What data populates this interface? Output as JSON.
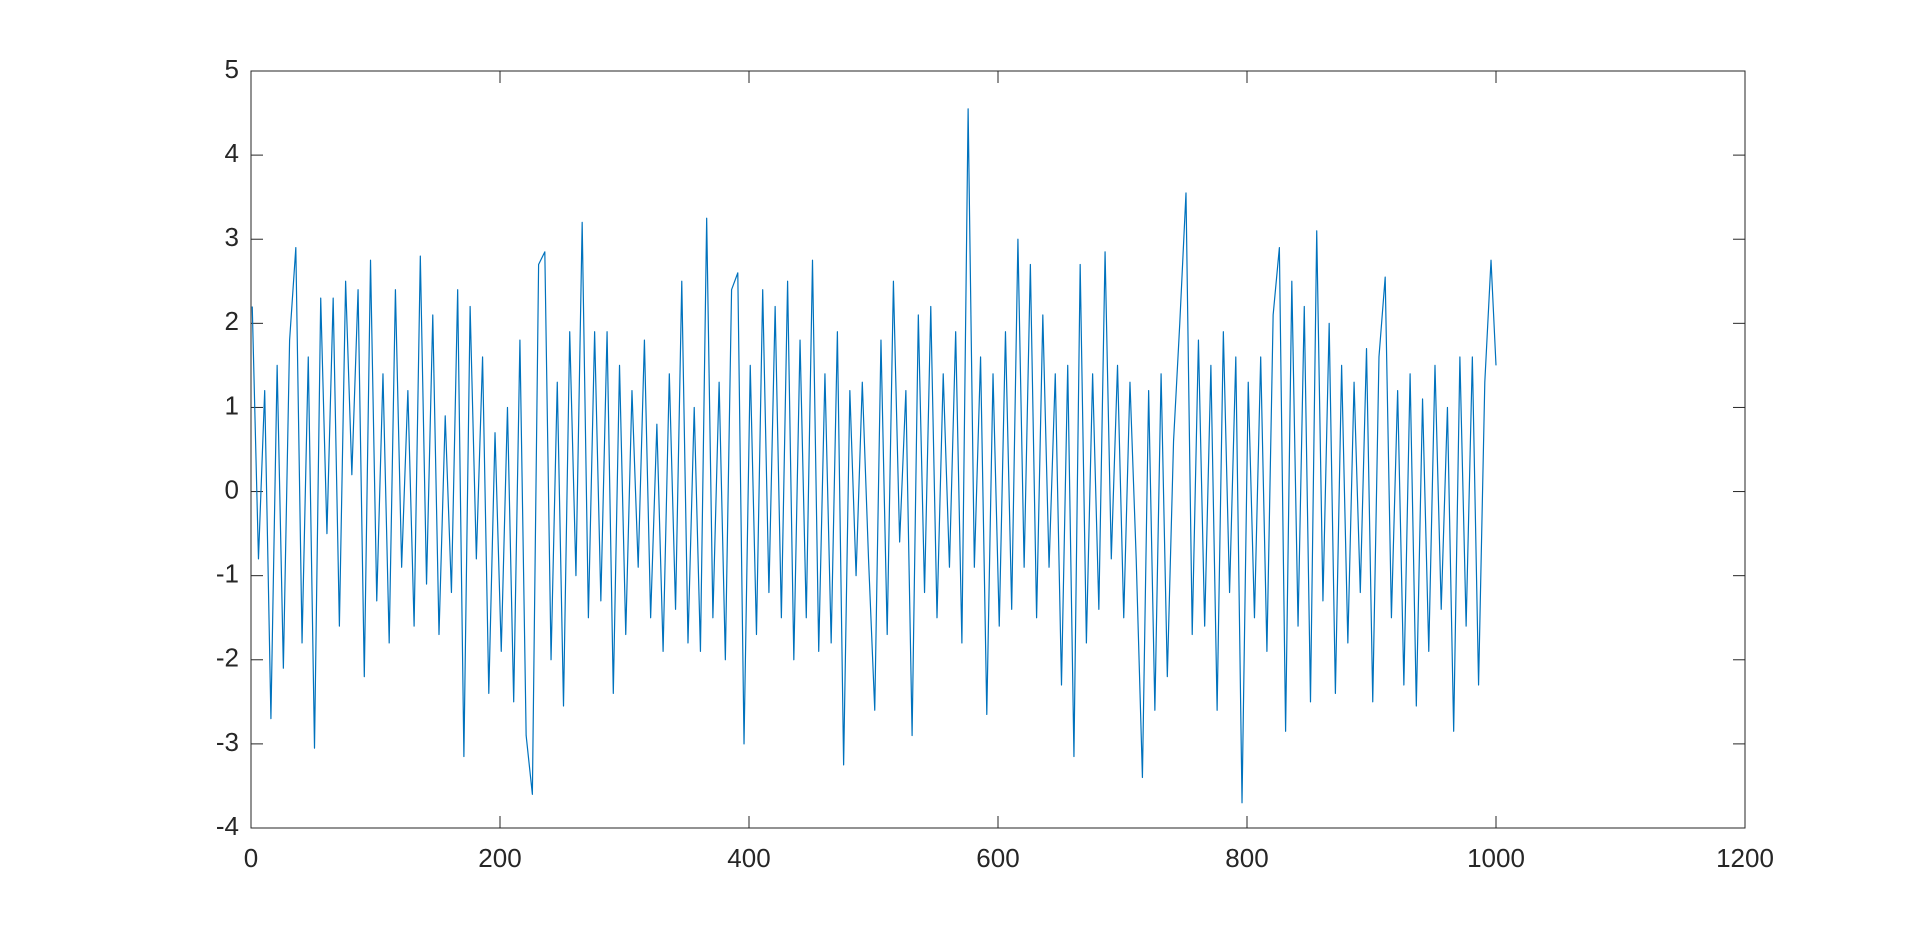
{
  "chart_data": {
    "type": "line",
    "x": [
      1,
      6,
      11,
      16,
      21,
      26,
      31,
      36,
      41,
      46,
      51,
      56,
      61,
      66,
      71,
      76,
      81,
      86,
      91,
      96,
      101,
      106,
      111,
      116,
      121,
      126,
      131,
      136,
      141,
      146,
      151,
      156,
      161,
      166,
      171,
      176,
      181,
      186,
      191,
      196,
      201,
      206,
      211,
      216,
      221,
      226,
      231,
      236,
      241,
      246,
      251,
      256,
      261,
      266,
      271,
      276,
      281,
      286,
      291,
      296,
      301,
      306,
      311,
      316,
      321,
      326,
      331,
      336,
      341,
      346,
      351,
      356,
      361,
      366,
      371,
      376,
      381,
      386,
      391,
      396,
      401,
      406,
      411,
      416,
      421,
      426,
      431,
      436,
      441,
      446,
      451,
      456,
      461,
      466,
      471,
      476,
      481,
      486,
      491,
      496,
      501,
      506,
      511,
      516,
      521,
      526,
      531,
      536,
      541,
      546,
      551,
      556,
      561,
      566,
      571,
      576,
      581,
      586,
      591,
      596,
      601,
      606,
      611,
      616,
      621,
      626,
      631,
      636,
      641,
      646,
      651,
      656,
      661,
      666,
      671,
      676,
      681,
      686,
      691,
      696,
      701,
      706,
      711,
      716,
      721,
      726,
      731,
      736,
      741,
      746,
      751,
      756,
      761,
      766,
      771,
      776,
      781,
      786,
      791,
      796,
      801,
      806,
      811,
      816,
      821,
      826,
      831,
      836,
      841,
      846,
      851,
      856,
      861,
      866,
      871,
      876,
      881,
      886,
      891,
      896,
      901,
      906,
      911,
      916,
      921,
      926,
      931,
      936,
      941,
      946,
      951,
      956,
      961,
      966,
      971,
      976,
      981,
      986,
      991,
      996,
      1000
    ],
    "series": [
      {
        "color": "#0072bd",
        "values": [
          2.2,
          -0.8,
          1.2,
          -2.7,
          1.5,
          -2.1,
          1.8,
          2.9,
          -1.8,
          1.6,
          -3.05,
          2.3,
          -0.5,
          2.3,
          -1.6,
          2.5,
          0.2,
          2.4,
          -2.2,
          2.75,
          -1.3,
          1.4,
          -1.8,
          2.4,
          -0.9,
          1.2,
          -1.6,
          2.8,
          -1.1,
          2.1,
          -1.7,
          0.9,
          -1.2,
          2.4,
          -3.15,
          2.2,
          -0.8,
          1.6,
          -2.4,
          0.7,
          -1.9,
          1.0,
          -2.5,
          1.8,
          -2.9,
          -3.6,
          2.7,
          2.85,
          -2.0,
          1.3,
          -2.55,
          1.9,
          -1.0,
          3.2,
          -1.5,
          1.9,
          -1.3,
          1.9,
          -2.4,
          1.5,
          -1.7,
          1.2,
          -0.9,
          1.8,
          -1.5,
          0.8,
          -1.9,
          1.4,
          -1.4,
          2.5,
          -1.8,
          1.0,
          -1.9,
          3.25,
          -1.5,
          1.3,
          -2.0,
          2.4,
          2.6,
          -3.0,
          1.5,
          -1.7,
          2.4,
          -1.2,
          2.2,
          -1.5,
          2.5,
          -2.0,
          1.8,
          -1.5,
          2.75,
          -1.9,
          1.4,
          -1.8,
          1.9,
          -3.25,
          1.2,
          -1.0,
          1.3,
          -0.8,
          -2.6,
          1.8,
          -1.7,
          2.5,
          -0.6,
          1.2,
          -2.9,
          2.1,
          -1.2,
          2.2,
          -1.5,
          1.4,
          -0.9,
          1.9,
          -1.8,
          4.55,
          -0.9,
          1.6,
          -2.65,
          1.4,
          -1.6,
          1.9,
          -1.4,
          3.0,
          -0.9,
          2.7,
          -1.5,
          2.1,
          -0.9,
          1.4,
          -2.3,
          1.5,
          -3.15,
          2.7,
          -1.8,
          1.4,
          -1.4,
          2.85,
          -0.8,
          1.5,
          -1.5,
          1.3,
          -0.8,
          -3.4,
          1.2,
          -2.6,
          1.4,
          -2.2,
          0.6,
          2.0,
          3.55,
          -1.7,
          1.8,
          -1.6,
          1.5,
          -2.6,
          1.9,
          -1.2,
          1.6,
          -3.7,
          1.3,
          -1.5,
          1.6,
          -1.9,
          2.1,
          2.9,
          -2.85,
          2.5,
          -1.6,
          2.2,
          -2.5,
          3.1,
          -1.3,
          2.0,
          -2.4,
          1.5,
          -1.8,
          1.3,
          -1.2,
          1.7,
          -2.5,
          1.6,
          2.55,
          -1.5,
          1.2,
          -2.3,
          1.4,
          -2.55,
          1.1,
          -1.9,
          1.5,
          -1.4,
          1.0,
          -2.85,
          1.6,
          -1.6,
          1.6,
          -2.3,
          1.3,
          2.75,
          1.5
        ]
      }
    ],
    "xlim": [
      0,
      1200
    ],
    "xticks": [
      0,
      200,
      400,
      600,
      800,
      1000,
      1200
    ],
    "ylim": [
      -4,
      5
    ],
    "yticks": [
      -4,
      -3,
      -2,
      -1,
      0,
      1,
      2,
      3,
      4,
      5
    ]
  }
}
